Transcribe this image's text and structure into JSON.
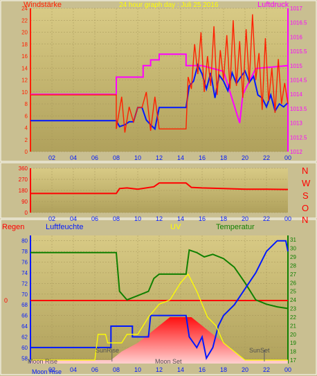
{
  "colors": {
    "page_bg": "#c9bf91",
    "plot_top": "#d8ca85",
    "plot_bottom": "#b0a15c",
    "wind": "#ff2000",
    "wind_avg": "#0018ff",
    "pressure": "#ff00ff",
    "direction": "#ff0000",
    "humidity": "#0018ff",
    "temperature": "#108000",
    "uv": "#ffff00",
    "rain": "#ff0000",
    "solar_fill": "#ff1010"
  },
  "top_chart": {
    "title": "24 hour graph day : Juli 25 2016",
    "left_label": "Windstärke",
    "right_label": "Luftdruck"
  },
  "mid_chart": {
    "compass": [
      "N",
      "W",
      "S",
      "O",
      "N"
    ]
  },
  "bottom_chart": {
    "labels": {
      "rain": "Regen",
      "humidity": "Luftfeuchte",
      "uv": "UV",
      "temperature": "Temperatur"
    },
    "rain_zero_label": "0",
    "annotations": {
      "moon_rise": "Moon Rise",
      "sun_rise": "SunRise",
      "moon_set": "Moon Set",
      "sun_set": "SunSet"
    }
  },
  "chart_data": [
    {
      "type": "line",
      "title": "24 hour graph day : Juli 25 2016",
      "x_ticks": [
        "02",
        "04",
        "06",
        "08",
        "10",
        "12",
        "14",
        "16",
        "18",
        "20",
        "22",
        "00"
      ],
      "xlim": [
        0,
        24
      ],
      "left_axis": {
        "label": "Windstärke",
        "ylim": [
          0,
          24
        ],
        "ticks": [
          0,
          2,
          4,
          6,
          8,
          10,
          12,
          14,
          16,
          18,
          20,
          22,
          24
        ]
      },
      "right_axis": {
        "label": "Luftdruck",
        "ylim": [
          1012,
          1017
        ],
        "ticks": [
          1012,
          1012.5,
          1013,
          1013.5,
          1014,
          1014.5,
          1015,
          1015.5,
          1016,
          1016.5,
          1017
        ]
      },
      "series": [
        {
          "key": "pressure",
          "axis": "right",
          "points": [
            [
              0,
              1014
            ],
            [
              8,
              1014
            ],
            [
              8,
              1014.6
            ],
            [
              10.5,
              1014.6
            ],
            [
              10.5,
              1015
            ],
            [
              11.2,
              1015
            ],
            [
              11.2,
              1015.2
            ],
            [
              12,
              1015.2
            ],
            [
              12,
              1015.4
            ],
            [
              14.5,
              1015.4
            ],
            [
              14.5,
              1015
            ],
            [
              16,
              1015
            ],
            [
              18,
              1014.8
            ],
            [
              19.5,
              1013
            ],
            [
              19.8,
              1014
            ],
            [
              21,
              1014.9
            ],
            [
              24,
              1015
            ]
          ]
        },
        {
          "key": "wind_avg",
          "axis": "left",
          "points": [
            [
              0,
              5.2
            ],
            [
              8,
              5.2
            ],
            [
              8.3,
              4.2
            ],
            [
              8.8,
              4.5
            ],
            [
              9.2,
              5
            ],
            [
              9.6,
              5
            ],
            [
              10,
              7.4
            ],
            [
              10.4,
              7.4
            ],
            [
              10.8,
              5.3
            ],
            [
              11.2,
              4.5
            ],
            [
              11.6,
              3.8
            ],
            [
              12,
              7.4
            ],
            [
              14.5,
              7.4
            ],
            [
              14.8,
              11
            ],
            [
              15.2,
              11.8
            ],
            [
              15.6,
              14.5
            ],
            [
              16,
              13
            ],
            [
              16.4,
              10.5
            ],
            [
              16.8,
              13.2
            ],
            [
              17.2,
              9
            ],
            [
              17.6,
              12.8
            ],
            [
              18,
              11.8
            ],
            [
              18.4,
              10.2
            ],
            [
              18.8,
              13.2
            ],
            [
              19.2,
              11.4
            ],
            [
              19.6,
              12.5
            ],
            [
              20,
              13.5
            ],
            [
              20.4,
              11.6
            ],
            [
              20.8,
              12.6
            ],
            [
              21.2,
              9.5
            ],
            [
              21.6,
              9
            ],
            [
              22,
              7.5
            ],
            [
              22.4,
              9.5
            ],
            [
              22.8,
              6.8
            ],
            [
              23.2,
              8
            ],
            [
              23.6,
              7.5
            ],
            [
              24,
              8.2
            ]
          ]
        },
        {
          "key": "wind",
          "axis": "left",
          "points": [
            [
              0,
              9.5
            ],
            [
              8,
              9.5
            ],
            [
              8,
              3.8
            ],
            [
              8.5,
              9.2
            ],
            [
              8.8,
              3.2
            ],
            [
              9.2,
              7.5
            ],
            [
              9.6,
              5
            ],
            [
              10,
              7.4
            ],
            [
              10.4,
              7.4
            ],
            [
              10.8,
              10
            ],
            [
              11.2,
              3.5
            ],
            [
              11.6,
              9.2
            ],
            [
              12,
              3.8
            ],
            [
              14.5,
              3.8
            ],
            [
              14.7,
              12.5
            ],
            [
              15,
              10.5
            ],
            [
              15.3,
              18
            ],
            [
              15.6,
              13
            ],
            [
              15.9,
              20
            ],
            [
              16.2,
              10
            ],
            [
              16.5,
              16
            ],
            [
              16.8,
              11
            ],
            [
              17.1,
              21
            ],
            [
              17.4,
              9.5
            ],
            [
              17.7,
              17
            ],
            [
              18,
              12
            ],
            [
              18.3,
              19.5
            ],
            [
              18.6,
              10.5
            ],
            [
              18.9,
              22
            ],
            [
              19.2,
              11
            ],
            [
              19.5,
              18.5
            ],
            [
              19.8,
              9
            ],
            [
              20.1,
              20.5
            ],
            [
              20.4,
              11.5
            ],
            [
              20.7,
              23
            ],
            [
              21,
              12
            ],
            [
              21.3,
              16.5
            ],
            [
              21.6,
              7
            ],
            [
              21.9,
              19
            ],
            [
              22.2,
              8.5
            ],
            [
              22.5,
              14
            ],
            [
              22.8,
              6.5
            ],
            [
              23.1,
              15.5
            ],
            [
              23.4,
              8
            ],
            [
              23.7,
              11.5
            ],
            [
              24,
              8
            ]
          ]
        }
      ]
    },
    {
      "type": "line",
      "x_ticks": [
        "02",
        "04",
        "06",
        "08",
        "10",
        "12",
        "14",
        "16",
        "18",
        "20",
        "22",
        "00"
      ],
      "xlim": [
        0,
        24
      ],
      "ylim": [
        0,
        360
      ],
      "y_ticks": [
        0,
        90,
        180,
        270,
        360
      ],
      "series": [
        {
          "key": "direction",
          "points": [
            [
              0,
              155
            ],
            [
              8,
              155
            ],
            [
              8.3,
              195
            ],
            [
              9,
              200
            ],
            [
              10,
              190
            ],
            [
              11.5,
              210
            ],
            [
              12,
              240
            ],
            [
              14.5,
              240
            ],
            [
              15,
              205
            ],
            [
              16,
              200
            ],
            [
              18,
              195
            ],
            [
              20,
              190
            ],
            [
              22,
              190
            ],
            [
              24,
              188
            ]
          ]
        }
      ]
    },
    {
      "type": "line",
      "x_ticks": [
        "02",
        "04",
        "06",
        "08",
        "10",
        "12",
        "14",
        "16",
        "18",
        "20",
        "22",
        "00"
      ],
      "xlim": [
        0,
        24
      ],
      "left_axis": {
        "label": "Luftfeuchte",
        "ylim": [
          57,
          81
        ],
        "ticks": [
          58,
          60,
          62,
          64,
          66,
          68,
          70,
          72,
          74,
          76,
          78,
          80
        ]
      },
      "right_axis": {
        "label": "Temperatur",
        "ylim": [
          16.6,
          31.5
        ],
        "ticks": [
          17,
          18,
          19,
          20,
          21,
          22,
          23,
          24,
          25,
          26,
          27,
          28,
          29,
          30,
          31
        ]
      },
      "series": [
        {
          "key": "temperature",
          "axis": "right",
          "points": [
            [
              0,
              29.5
            ],
            [
              8,
              29.5
            ],
            [
              8.3,
              25
            ],
            [
              9,
              24
            ],
            [
              10,
              24.5
            ],
            [
              11,
              25
            ],
            [
              11.5,
              26.5
            ],
            [
              12,
              27
            ],
            [
              14.5,
              27
            ],
            [
              14.8,
              29.8
            ],
            [
              15.5,
              29.5
            ],
            [
              16.2,
              29
            ],
            [
              17,
              29.3
            ],
            [
              18,
              28.8
            ],
            [
              19,
              27.8
            ],
            [
              20,
              26
            ],
            [
              21,
              24
            ],
            [
              22,
              23.5
            ],
            [
              23,
              23.2
            ],
            [
              24,
              23
            ]
          ]
        },
        {
          "key": "humidity",
          "axis": "left",
          "points": [
            [
              0,
              60
            ],
            [
              7.5,
              60
            ],
            [
              7.5,
              64
            ],
            [
              9.5,
              64
            ],
            [
              9.5,
              62
            ],
            [
              11,
              62
            ],
            [
              11.2,
              66
            ],
            [
              14.5,
              66
            ],
            [
              14.8,
              62
            ],
            [
              15.5,
              60
            ],
            [
              16,
              62
            ],
            [
              16.4,
              58
            ],
            [
              17,
              60
            ],
            [
              17.5,
              64
            ],
            [
              18,
              66
            ],
            [
              19,
              68
            ],
            [
              20,
              71
            ],
            [
              21,
              74
            ],
            [
              22,
              78
            ],
            [
              23,
              80
            ],
            [
              23.8,
              80
            ],
            [
              24,
              78
            ]
          ]
        },
        {
          "key": "uv",
          "axis": "right",
          "points": [
            [
              0,
              17
            ],
            [
              6,
              17
            ],
            [
              6.3,
              20
            ],
            [
              7,
              20
            ],
            [
              7.2,
              19
            ],
            [
              8.5,
              19
            ],
            [
              9,
              20
            ],
            [
              10,
              20
            ],
            [
              10.5,
              21
            ],
            [
              11,
              22
            ],
            [
              12,
              23.5
            ],
            [
              13,
              24
            ],
            [
              14,
              26
            ],
            [
              14.7,
              27
            ],
            [
              15.5,
              25
            ],
            [
              16.5,
              22
            ],
            [
              17.3,
              21
            ],
            [
              18,
              19
            ],
            [
              19,
              18
            ],
            [
              20,
              17
            ],
            [
              24,
              17
            ]
          ]
        },
        {
          "key": "solar",
          "axis": "right",
          "points": [
            [
              0,
              17
            ],
            [
              7.5,
              17
            ],
            [
              8.5,
              18
            ],
            [
              10,
              19
            ],
            [
              11,
              20
            ],
            [
              12,
              21
            ],
            [
              13,
              22
            ],
            [
              14,
              22
            ],
            [
              15,
              22
            ],
            [
              16,
              21
            ],
            [
              17,
              20
            ],
            [
              18,
              19
            ],
            [
              19,
              18
            ],
            [
              20,
              17
            ],
            [
              24,
              17
            ]
          ]
        }
      ]
    }
  ]
}
